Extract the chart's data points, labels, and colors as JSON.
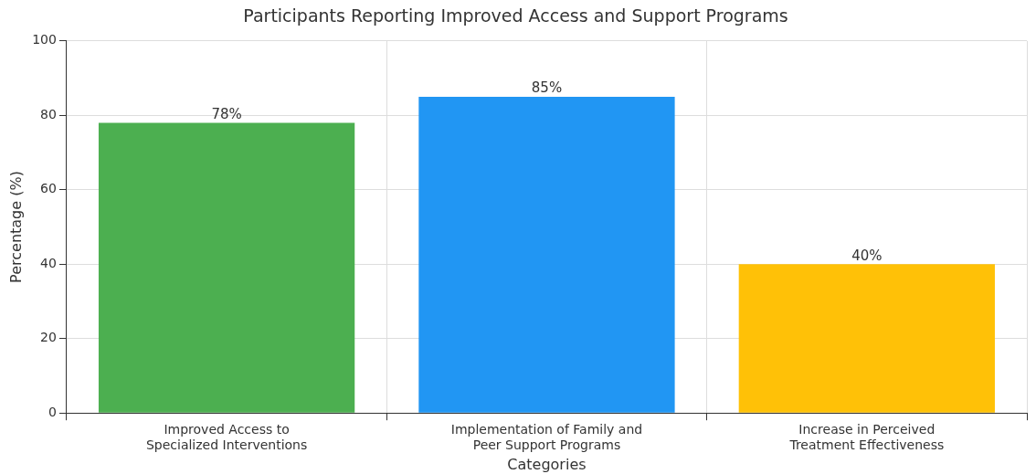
{
  "chart_data": {
    "type": "bar",
    "title": "Participants Reporting Improved Access and Support Programs",
    "xlabel": "Categories",
    "ylabel": "Percentage (%)",
    "categories": [
      "Improved Access to Specialized Interventions",
      "Implementation of Family and Peer Support Programs",
      "Increase in Perceived Treatment Effectiveness"
    ],
    "values": [
      78,
      85,
      40
    ],
    "colors": [
      "#4caf50",
      "#2196f3",
      "#ffc107"
    ],
    "value_labels": [
      "78%",
      "85%",
      "40%"
    ],
    "ylim": [
      0,
      100
    ],
    "yticks": [
      0,
      20,
      40,
      60,
      80,
      100
    ],
    "grid": true
  }
}
